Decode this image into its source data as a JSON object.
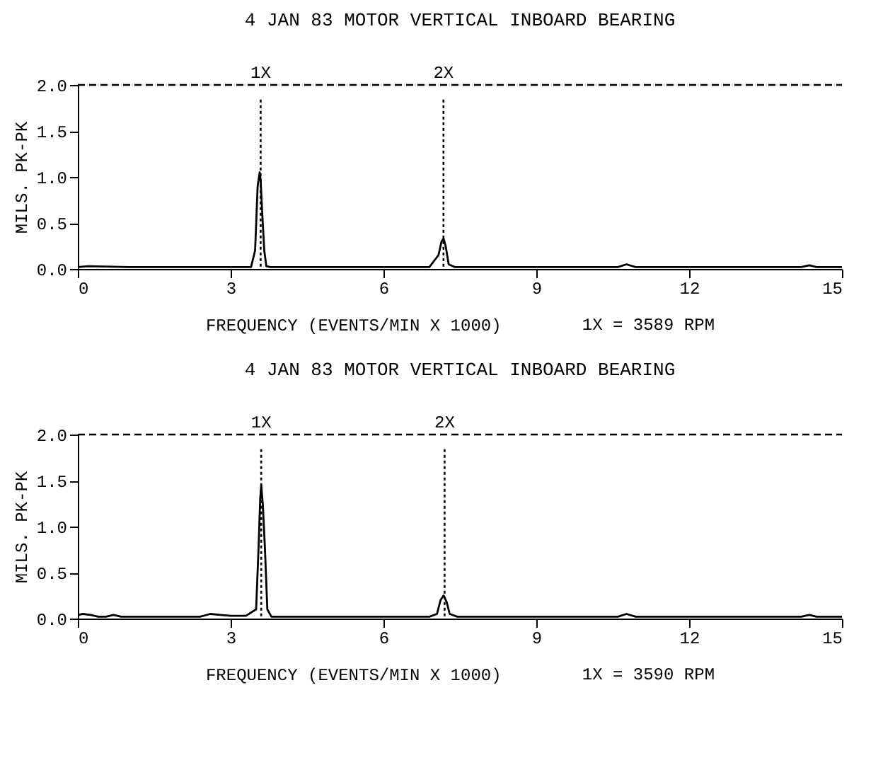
{
  "chart_data": [
    {
      "type": "line",
      "title": "4 JAN 83  MOTOR VERTICAL INBOARD BEARING",
      "xlabel": "FREQUENCY (EVENTS/MIN X 1000)",
      "ylabel": "MILS. PK-PK",
      "series": [
        {
          "color": "#000000",
          "x": [
            0,
            0.2,
            1,
            2,
            3,
            3.4,
            3.48,
            3.53,
            3.57,
            3.59,
            3.62,
            3.66,
            3.7,
            3.78,
            4.5,
            6,
            6.9,
            7.08,
            7.14,
            7.18,
            7.22,
            7.28,
            7.4,
            9,
            10.6,
            10.77,
            10.95,
            12,
            14.2,
            14.36,
            14.5,
            15
          ],
          "values": [
            0.02,
            0.03,
            0.02,
            0.02,
            0.02,
            0.02,
            0.2,
            0.9,
            1.05,
            0.95,
            0.6,
            0.2,
            0.03,
            0.02,
            0.02,
            0.02,
            0.02,
            0.15,
            0.3,
            0.33,
            0.25,
            0.05,
            0.02,
            0.02,
            0.02,
            0.05,
            0.02,
            0.02,
            0.02,
            0.04,
            0.02,
            0.02
          ]
        }
      ],
      "xlim": [
        0,
        15
      ],
      "xticks": [
        0,
        3,
        6,
        9,
        12,
        15
      ],
      "ylim": [
        0,
        2
      ],
      "yticks": [
        {
          "value": 0,
          "label": "0.0"
        },
        {
          "value": 0.5,
          "label": "0.5"
        },
        {
          "value": 1,
          "label": "1.0"
        },
        {
          "value": 1.5,
          "label": "1.5"
        },
        {
          "value": 2,
          "label": "2.0"
        }
      ],
      "ref_lines": [
        {
          "axis": "x",
          "value": 3.589,
          "label": "1X",
          "line_style": "dotted"
        },
        {
          "axis": "x",
          "value": 7.178,
          "label": "2X",
          "line_style": "dotted"
        },
        {
          "axis": "y",
          "value": 2,
          "label": null,
          "line_style": "dashed"
        }
      ],
      "annotations": [
        "1X = 3589 RPM"
      ],
      "grid": false,
      "line_style": "solid",
      "marker": "none"
    },
    {
      "type": "line",
      "title": "4 JAN 83 MOTOR VERTICAL INBOARD BEARING",
      "xlabel": "FREQUENCY (EVENTS/MIN X 1000)",
      "ylabel": "MILS. PK-PK",
      "series": [
        {
          "color": "#000000",
          "x": [
            0,
            0.1,
            0.25,
            0.4,
            0.55,
            0.7,
            0.85,
            1,
            2,
            2.4,
            2.6,
            2.8,
            3,
            3.3,
            3.5,
            3.55,
            3.58,
            3.6,
            3.63,
            3.67,
            3.72,
            3.8,
            4.5,
            6,
            6.9,
            7.05,
            7.12,
            7.18,
            7.24,
            7.3,
            7.45,
            9,
            10.6,
            10.77,
            10.95,
            12,
            14.2,
            14.36,
            14.5,
            15
          ],
          "values": [
            0.04,
            0.05,
            0.04,
            0.02,
            0.02,
            0.04,
            0.02,
            0.02,
            0.02,
            0.02,
            0.05,
            0.04,
            0.03,
            0.03,
            0.1,
            0.8,
            1.3,
            1.45,
            1.25,
            0.8,
            0.1,
            0.02,
            0.02,
            0.02,
            0.02,
            0.05,
            0.2,
            0.25,
            0.18,
            0.05,
            0.02,
            0.02,
            0.02,
            0.05,
            0.02,
            0.02,
            0.02,
            0.04,
            0.02,
            0.02
          ]
        }
      ],
      "xlim": [
        0,
        15
      ],
      "xticks": [
        0,
        3,
        6,
        9,
        12,
        15
      ],
      "ylim": [
        0,
        2
      ],
      "yticks": [
        {
          "value": 0,
          "label": "0.0"
        },
        {
          "value": 0.5,
          "label": "0.5"
        },
        {
          "value": 1,
          "label": "1.0"
        },
        {
          "value": 1.5,
          "label": "1.5"
        },
        {
          "value": 2,
          "label": "2.0"
        }
      ],
      "ref_lines": [
        {
          "axis": "x",
          "value": 3.6,
          "label": "1X",
          "line_style": "dotted"
        },
        {
          "axis": "x",
          "value": 7.2,
          "label": "2X",
          "line_style": "dotted"
        },
        {
          "axis": "y",
          "value": 2,
          "label": null,
          "line_style": "dashed"
        }
      ],
      "annotations": [
        "1X = 3590 RPM"
      ],
      "grid": false,
      "line_style": "solid",
      "marker": "none"
    }
  ]
}
